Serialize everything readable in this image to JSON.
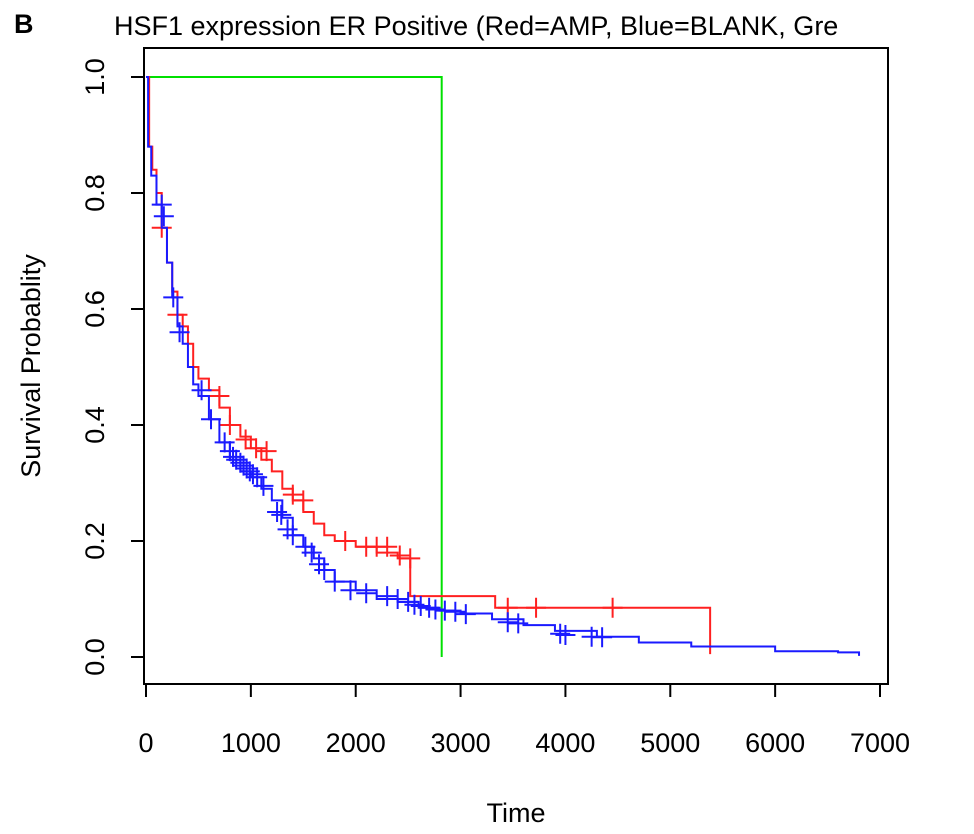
{
  "panel_label": "B",
  "chart_data": {
    "type": "line",
    "subtype": "kaplan-meier",
    "title": "HSF1 expression ER Positive (Red=AMP, Blue=BLANK, Gre",
    "xlabel": "Time",
    "ylabel": "Survival Probablity",
    "xlim": [
      0,
      7000
    ],
    "ylim": [
      0,
      1
    ],
    "x_ticks": [
      0,
      1000,
      2000,
      3000,
      4000,
      5000,
      6000,
      7000
    ],
    "y_ticks": [
      0.0,
      0.2,
      0.4,
      0.6,
      0.8,
      1.0
    ],
    "x_tick_labels": [
      "0",
      "1000",
      "2000",
      "3000",
      "4000",
      "5000",
      "6000",
      "7000"
    ],
    "y_tick_labels": [
      "0.0",
      "0.2",
      "0.4",
      "0.6",
      "0.8",
      "1.0"
    ],
    "grid": false,
    "legend": "none",
    "series": [
      {
        "color": "#00e000",
        "x": [
          0,
          2820,
          2820
        ],
        "y": [
          1.0,
          1.0,
          0.0
        ],
        "censored": []
      },
      {
        "color": "#ff2020",
        "x": [
          0,
          30,
          60,
          100,
          150,
          200,
          250,
          300,
          350,
          400,
          450,
          500,
          600,
          700,
          800,
          900,
          1000,
          1100,
          1200,
          1300,
          1400,
          1500,
          1600,
          1700,
          1800,
          2000,
          2200,
          2400,
          2520,
          2520,
          3330,
          3330,
          5380,
          5380
        ],
        "y": [
          1.0,
          0.88,
          0.84,
          0.8,
          0.74,
          0.68,
          0.63,
          0.59,
          0.57,
          0.54,
          0.5,
          0.48,
          0.46,
          0.43,
          0.4,
          0.38,
          0.36,
          0.34,
          0.32,
          0.29,
          0.27,
          0.25,
          0.23,
          0.21,
          0.2,
          0.19,
          0.18,
          0.17,
          0.17,
          0.105,
          0.105,
          0.085,
          0.085,
          0.005
        ],
        "censored": [
          [
            150,
            0.74
          ],
          [
            300,
            0.59
          ],
          [
            700,
            0.45
          ],
          [
            800,
            0.4
          ],
          [
            950,
            0.375
          ],
          [
            1050,
            0.36
          ],
          [
            1150,
            0.355
          ],
          [
            1400,
            0.28
          ],
          [
            1500,
            0.27
          ],
          [
            1900,
            0.2
          ],
          [
            2100,
            0.19
          ],
          [
            2200,
            0.19
          ],
          [
            2300,
            0.19
          ],
          [
            2420,
            0.175
          ],
          [
            2520,
            0.17
          ],
          [
            3450,
            0.085
          ],
          [
            3720,
            0.085
          ],
          [
            4450,
            0.085
          ]
        ]
      },
      {
        "color": "#1a1aff",
        "x": [
          0,
          20,
          50,
          100,
          150,
          200,
          250,
          300,
          350,
          400,
          450,
          500,
          600,
          700,
          800,
          900,
          1000,
          1100,
          1200,
          1300,
          1400,
          1500,
          1600,
          1700,
          1800,
          2000,
          2200,
          2400,
          2600,
          2800,
          3000,
          3300,
          3600,
          3900,
          4300,
          4700,
          5200,
          6000,
          6600,
          6800
        ],
        "y": [
          1.0,
          0.88,
          0.83,
          0.78,
          0.74,
          0.68,
          0.62,
          0.57,
          0.54,
          0.5,
          0.47,
          0.45,
          0.41,
          0.37,
          0.34,
          0.32,
          0.31,
          0.29,
          0.27,
          0.24,
          0.21,
          0.19,
          0.17,
          0.15,
          0.13,
          0.115,
          0.1,
          0.095,
          0.085,
          0.08,
          0.075,
          0.065,
          0.055,
          0.045,
          0.035,
          0.025,
          0.018,
          0.01,
          0.008,
          0.002
        ],
        "censored": [
          [
            150,
            0.78
          ],
          [
            170,
            0.76
          ],
          [
            260,
            0.62
          ],
          [
            320,
            0.56
          ],
          [
            530,
            0.46
          ],
          [
            620,
            0.41
          ],
          [
            750,
            0.37
          ],
          [
            800,
            0.355
          ],
          [
            830,
            0.345
          ],
          [
            860,
            0.34
          ],
          [
            900,
            0.335
          ],
          [
            930,
            0.33
          ],
          [
            960,
            0.325
          ],
          [
            990,
            0.32
          ],
          [
            1020,
            0.315
          ],
          [
            1060,
            0.31
          ],
          [
            1120,
            0.295
          ],
          [
            1250,
            0.25
          ],
          [
            1290,
            0.245
          ],
          [
            1350,
            0.22
          ],
          [
            1400,
            0.21
          ],
          [
            1520,
            0.19
          ],
          [
            1580,
            0.18
          ],
          [
            1650,
            0.16
          ],
          [
            1700,
            0.15
          ],
          [
            1800,
            0.13
          ],
          [
            1950,
            0.115
          ],
          [
            2100,
            0.11
          ],
          [
            2300,
            0.105
          ],
          [
            2400,
            0.1
          ],
          [
            2500,
            0.095
          ],
          [
            2560,
            0.09
          ],
          [
            2620,
            0.088
          ],
          [
            2700,
            0.085
          ],
          [
            2760,
            0.082
          ],
          [
            2850,
            0.08
          ],
          [
            2950,
            0.078
          ],
          [
            3050,
            0.074
          ],
          [
            3450,
            0.06
          ],
          [
            3550,
            0.058
          ],
          [
            3950,
            0.04
          ],
          [
            4000,
            0.038
          ],
          [
            4250,
            0.035
          ],
          [
            4350,
            0.034
          ]
        ]
      }
    ]
  }
}
